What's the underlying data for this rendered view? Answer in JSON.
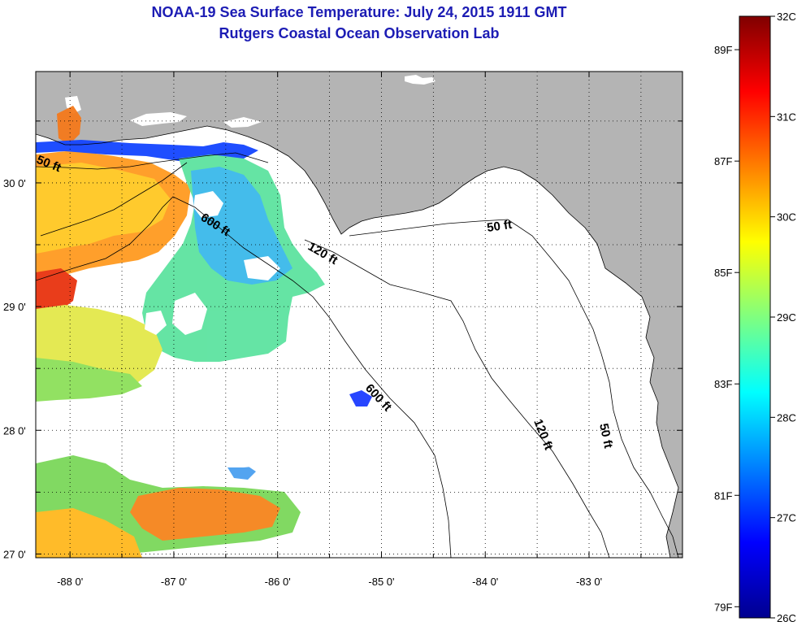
{
  "title": {
    "line1": "NOAA-19 Sea Surface Temperature:  July 24, 2015 1911 GMT",
    "line2": "Rutgers Coastal Ocean Observation Lab"
  },
  "map": {
    "lon_range": [
      -88.33,
      -82.1
    ],
    "lat_range": [
      26.97,
      30.9
    ],
    "lon_ticks": [
      "-88 0'",
      "-87 0'",
      "-86 0'",
      "-85 0'",
      "-84 0'",
      "-83 0'"
    ],
    "lat_ticks": [
      "30 0'",
      "29 0'",
      "28 0'",
      "27 0'"
    ],
    "contour_labels": [
      "50 ft",
      "600 ft",
      "120 ft",
      "50 ft",
      "600 ft",
      "120 ft",
      "50 ft"
    ],
    "colors": {
      "land": "#b4b4b4",
      "ocean_nodata": "#ffffff",
      "title": "#1c1cb4"
    }
  },
  "colorbar": {
    "celsius_labels": [
      "32C",
      "31C",
      "30C",
      "29C",
      "28C",
      "27C",
      "26C"
    ],
    "fahrenheit_labels": [
      "89F",
      "87F",
      "85F",
      "83F",
      "81F",
      "79F"
    ],
    "range_c": [
      26,
      32
    ]
  }
}
